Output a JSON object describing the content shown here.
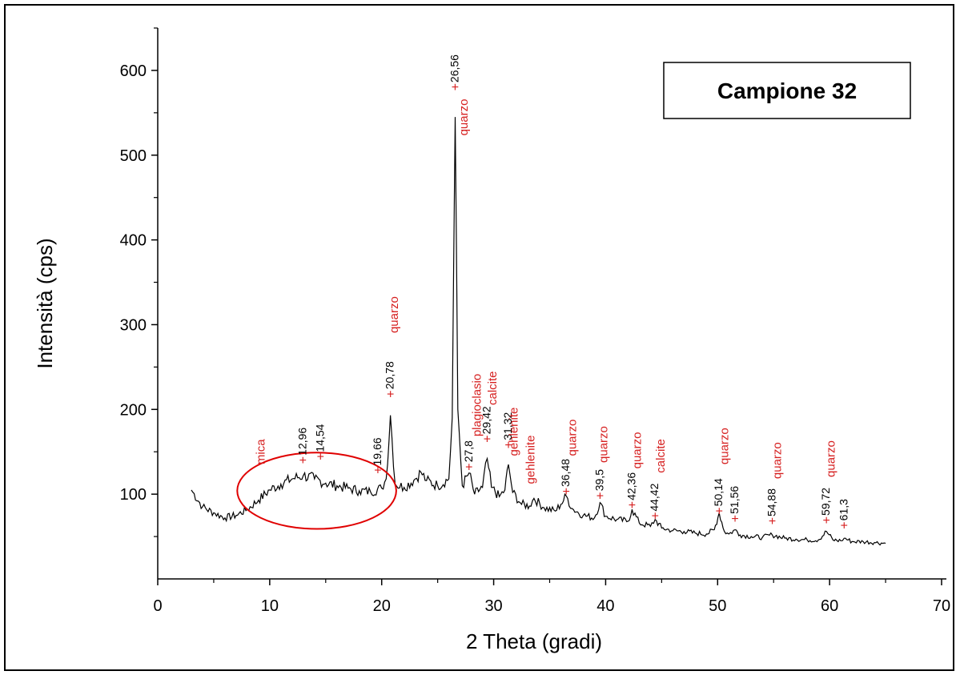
{
  "chart_data": {
    "type": "line",
    "title": "Campione 32",
    "xlabel": "2 Theta (gradi)",
    "ylabel": "Intensità (cps)",
    "xlim": [
      0,
      70
    ],
    "ylim": [
      0,
      650
    ],
    "x_ticks": [
      0,
      10,
      20,
      30,
      40,
      50,
      60,
      70
    ],
    "y_ticks": [
      100,
      200,
      300,
      400,
      500,
      600
    ],
    "grid": false,
    "series": [
      {
        "color": "#000000",
        "x": [
          3,
          4,
          5,
          6,
          7,
          8,
          9,
          10,
          11,
          12,
          13,
          14,
          15,
          16,
          17,
          18,
          19,
          20,
          20.4,
          20.78,
          21.2,
          22,
          23,
          23.5,
          24,
          25,
          26,
          26.3,
          26.56,
          26.8,
          27.2,
          27.8,
          28.3,
          29,
          29.42,
          29.8,
          30.5,
          31,
          31.32,
          31.7,
          32.5,
          33.2,
          33.6,
          34.5,
          35.5,
          36,
          36.48,
          37,
          38,
          39,
          39.5,
          40,
          41,
          42,
          42.36,
          43,
          44,
          44.42,
          45,
          46,
          47,
          48,
          49,
          49.7,
          50.14,
          50.6,
          51,
          51.56,
          52,
          53,
          54,
          54.88,
          56,
          57,
          58,
          59,
          59.72,
          60.3,
          61,
          61.3,
          62,
          63,
          64,
          65
        ],
        "y": [
          105,
          85,
          78,
          72,
          75,
          82,
          93,
          105,
          112,
          118,
          122,
          118,
          113,
          110,
          107,
          104,
          103,
          107,
          118,
          193,
          112,
          108,
          118,
          126,
          116,
          110,
          118,
          190,
          545,
          200,
          110,
          125,
          100,
          108,
          142,
          108,
          97,
          105,
          135,
          102,
          88,
          86,
          95,
          84,
          80,
          88,
          98,
          83,
          75,
          72,
          90,
          74,
          70,
          68,
          82,
          66,
          62,
          70,
          60,
          57,
          56,
          54,
          53,
          58,
          78,
          56,
          53,
          58,
          52,
          50,
          49,
          52,
          48,
          47,
          46,
          46,
          56,
          46,
          45,
          48,
          44,
          44,
          43,
          42
        ]
      }
    ],
    "peak_labels": [
      {
        "text": "12,96",
        "x": 12.96,
        "y": 140
      },
      {
        "text": "14,54",
        "x": 14.54,
        "y": 144
      },
      {
        "text": "19,66",
        "x": 19.66,
        "y": 128
      },
      {
        "text": "20,78",
        "x": 20.78,
        "y": 218
      },
      {
        "text": "26,56",
        "x": 26.56,
        "y": 580
      },
      {
        "text": "27,8",
        "x": 27.8,
        "y": 132
      },
      {
        "text": "29,42",
        "x": 29.42,
        "y": 165
      },
      {
        "text": "31,32",
        "x": 31.32,
        "y": 158
      },
      {
        "text": "36,48",
        "x": 36.48,
        "y": 103
      },
      {
        "text": "39,5",
        "x": 39.5,
        "y": 98
      },
      {
        "text": "42,36",
        "x": 42.36,
        "y": 87
      },
      {
        "text": "44,42",
        "x": 44.42,
        "y": 74
      },
      {
        "text": "50,14",
        "x": 50.14,
        "y": 80
      },
      {
        "text": "51,56",
        "x": 51.56,
        "y": 71
      },
      {
        "text": "54,88",
        "x": 54.88,
        "y": 68
      },
      {
        "text": "59,72",
        "x": 59.72,
        "y": 69
      },
      {
        "text": "61,3",
        "x": 61.3,
        "y": 63
      }
    ],
    "mineral_labels": [
      {
        "text": "mica",
        "x": 9.2,
        "y": 135
      },
      {
        "text": "quarzo",
        "x": 21.1,
        "y": 290
      },
      {
        "text": "quarzo",
        "x": 27.3,
        "y": 523
      },
      {
        "text": "plagioclasio",
        "x": 28.5,
        "y": 168
      },
      {
        "text": "calcite",
        "x": 29.9,
        "y": 205
      },
      {
        "text": "gehlenite",
        "x": 31.8,
        "y": 145
      },
      {
        "text": "gehlenite",
        "x": 33.3,
        "y": 112
      },
      {
        "text": "quarzo",
        "x": 37.0,
        "y": 145
      },
      {
        "text": "quarzo",
        "x": 39.8,
        "y": 137
      },
      {
        "text": "quarzo",
        "x": 42.8,
        "y": 130
      },
      {
        "text": "calcite",
        "x": 44.9,
        "y": 125
      },
      {
        "text": "quarzo",
        "x": 50.6,
        "y": 135
      },
      {
        "text": "quarzo",
        "x": 55.3,
        "y": 118
      },
      {
        "text": "quarzo",
        "x": 60.1,
        "y": 120
      }
    ],
    "annotations": [
      {
        "type": "ellipse",
        "color": "#e00000",
        "x_center": 14.2,
        "y_center": 104,
        "x_radius": 7.1,
        "y_radius": 45
      }
    ]
  }
}
